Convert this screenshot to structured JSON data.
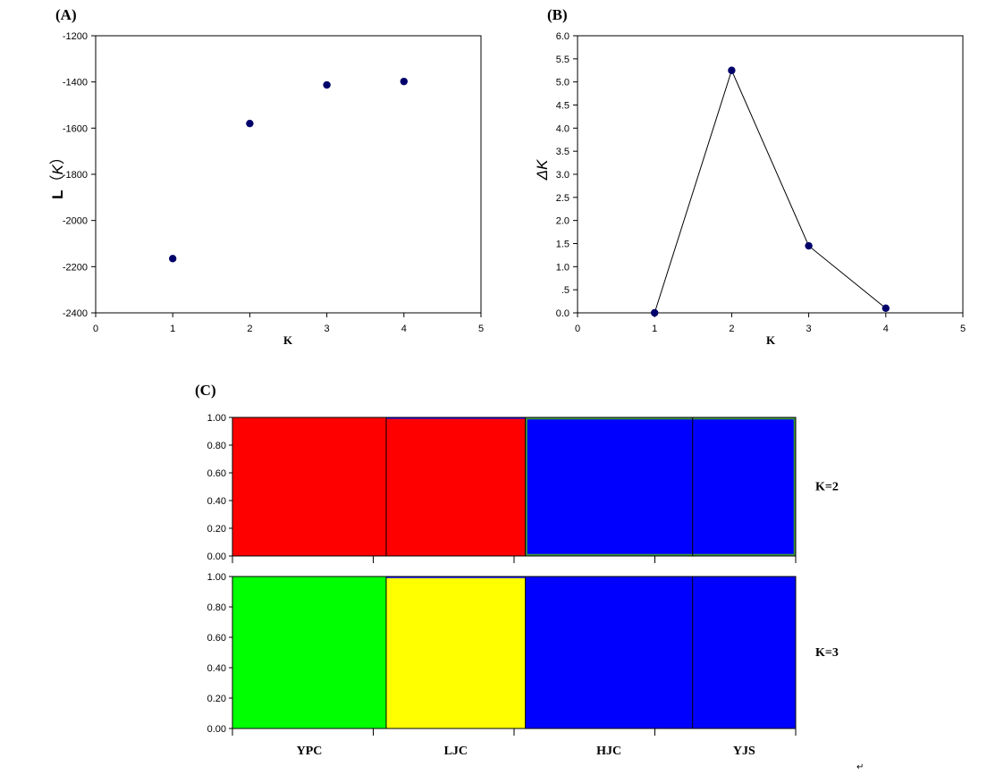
{
  "chart_data": [
    {
      "panel": "(A)",
      "type": "scatter",
      "xlabel": "K",
      "ylabel": "L（K）",
      "ylabel_parts": [
        "L",
        "（",
        "K",
        "）"
      ],
      "xlim": [
        0,
        5
      ],
      "ylim": [
        -2400,
        -1200
      ],
      "xticks": [
        "0",
        "1",
        "2",
        "3",
        "4",
        "5"
      ],
      "yticks": [
        "-1200",
        "-1400",
        "-1600",
        "-1800",
        "-2000",
        "-2200",
        "-2400"
      ],
      "x": [
        1,
        2,
        3,
        4
      ],
      "y": [
        -2165,
        -1580,
        -1413,
        -1398
      ],
      "marker_color": "#00006b"
    },
    {
      "panel": "(B)",
      "type": "line",
      "xlabel": "K",
      "ylabel": "ΔK",
      "xlim": [
        0,
        5
      ],
      "ylim": [
        0,
        6
      ],
      "xticks": [
        "0",
        "1",
        "2",
        "3",
        "4",
        "5"
      ],
      "yticks": [
        "6.0",
        "5.5",
        "5.0",
        "4.5",
        "4.0",
        "3.5",
        "3.0",
        "2.5",
        "2.0",
        "1.5",
        "1.0",
        ".5",
        "0.0"
      ],
      "x": [
        1,
        2,
        3,
        4
      ],
      "y": [
        0.0,
        5.25,
        1.45,
        0.1
      ],
      "marker_color": "#00006b"
    },
    {
      "panel": "(C)",
      "type": "bar",
      "stacked": true,
      "yticks": [
        "1.00",
        "0.80",
        "0.60",
        "0.40",
        "0.20",
        "0.00"
      ],
      "ylim": [
        0,
        1
      ],
      "populations": [
        "YPC",
        "LJC",
        "HJC",
        "YJS"
      ],
      "population_share": [
        0.273,
        0.247,
        0.297,
        0.183
      ],
      "series_colors": {
        "red": "#ff0000",
        "blue": "#0000ff",
        "green": "#00ff00",
        "yellow": "#ffff00"
      },
      "rows": [
        {
          "label": "K=2",
          "segments": [
            {
              "population": "YPC",
              "components": {
                "red": 1.0,
                "blue": 0.0
              }
            },
            {
              "population": "LJC",
              "components": {
                "red": 0.99,
                "blue": 0.01
              }
            },
            {
              "population": "HJC",
              "components": {
                "red": 0.0,
                "blue": 1.0
              }
            },
            {
              "population": "YJS",
              "components": {
                "red": 0.0,
                "blue": 1.0
              }
            }
          ]
        },
        {
          "label": "K=3",
          "segments": [
            {
              "population": "YPC",
              "components": {
                "green": 1.0,
                "yellow": 0.0,
                "blue": 0.0
              }
            },
            {
              "population": "LJC",
              "components": {
                "green": 0.0,
                "yellow": 0.99,
                "blue": 0.01
              }
            },
            {
              "population": "HJC",
              "components": {
                "green": 0.0,
                "yellow": 0.0,
                "blue": 1.0
              }
            },
            {
              "population": "YJS",
              "components": {
                "green": 0.0,
                "yellow": 0.0,
                "blue": 1.0
              }
            }
          ]
        }
      ]
    }
  ],
  "trailing_mark": "↵"
}
